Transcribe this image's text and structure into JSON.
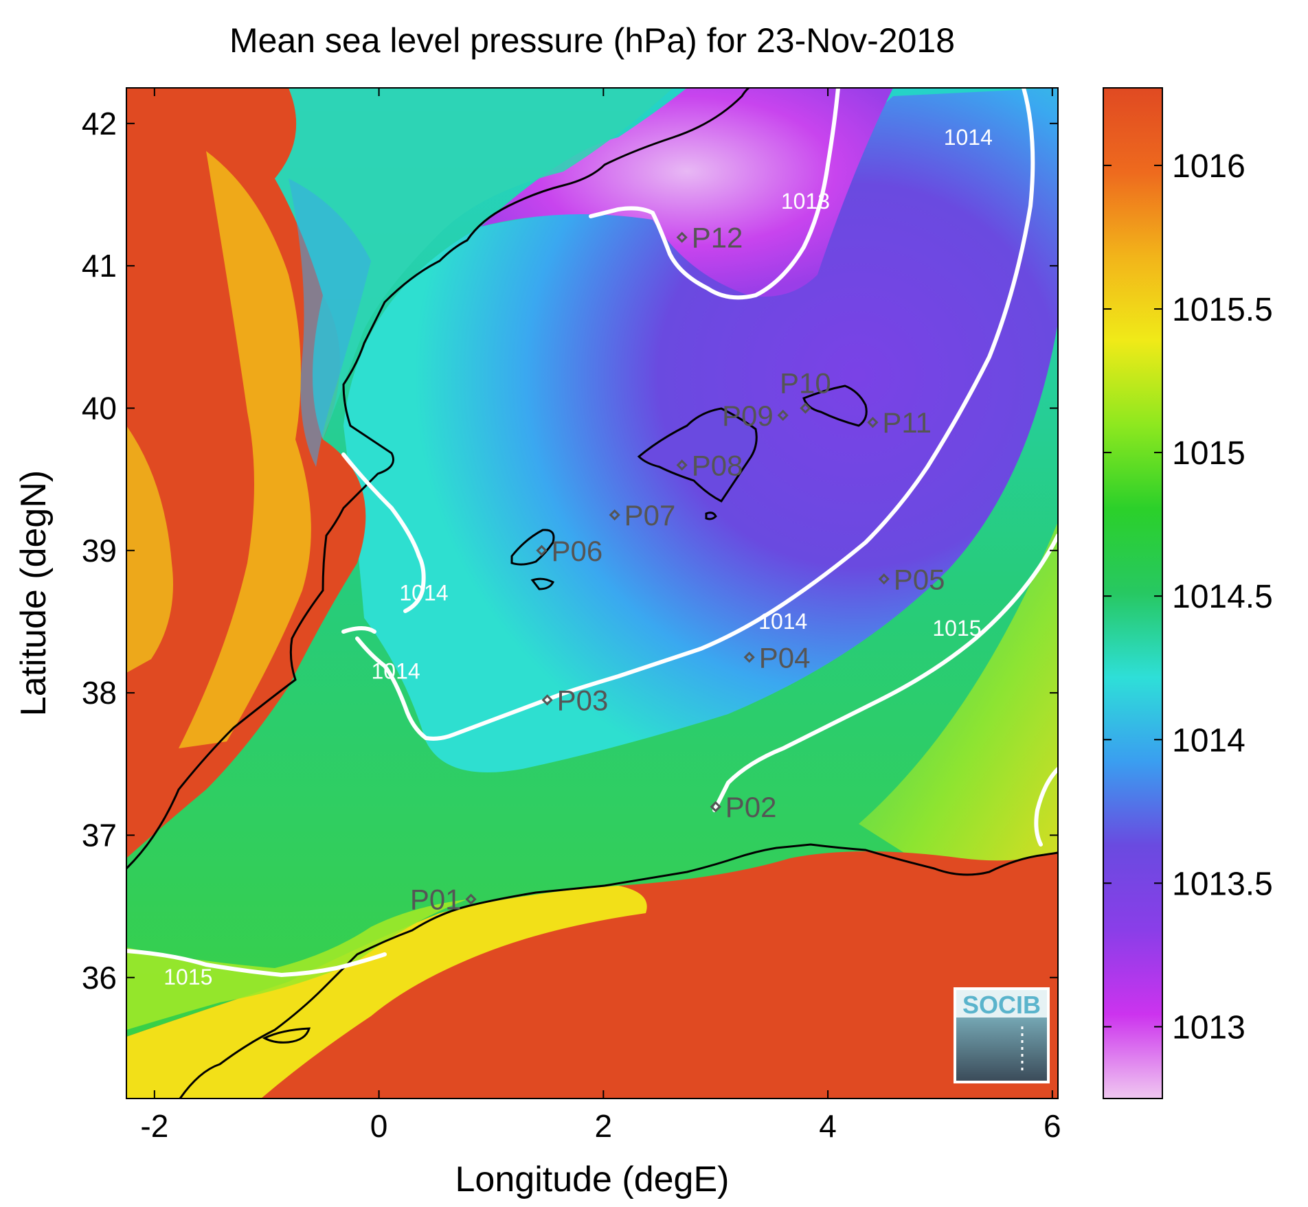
{
  "title": "Mean sea level pressure (hPa) for 23-Nov-2018",
  "xlabel": "Longitude (degE)",
  "ylabel": "Latitude (degN)",
  "x_ticks": [
    -2,
    0,
    2,
    4,
    6
  ],
  "y_ticks": [
    36,
    37,
    38,
    39,
    40,
    41,
    42
  ],
  "xlim": [
    -2.25,
    6.05
  ],
  "ylim": [
    35.15,
    42.25
  ],
  "colorbar": {
    "range": [
      1012.75,
      1016.27
    ],
    "ticks": [
      1013,
      1013.5,
      1014,
      1014.5,
      1015,
      1015.5,
      1016
    ],
    "stops": [
      "#f0c8f0",
      "#cc33ee",
      "#8a3ee8",
      "#6a4ae0",
      "#3a9ef0",
      "#2edfd8",
      "#27c862",
      "#2bd02a",
      "#8ee81f",
      "#f0ea18",
      "#f2b41a",
      "#ee6a1e",
      "#e04a22"
    ]
  },
  "colors": {
    "land": "#e04a22",
    "contour": "#ffffff",
    "coastline": "#000000",
    "station": "#555555"
  },
  "contour_labels": [
    {
      "text": "1013",
      "lon": 3.8,
      "lat": 41.4
    },
    {
      "text": "1014",
      "lon": 5.25,
      "lat": 41.85
    },
    {
      "text": "1014",
      "lon": 0.4,
      "lat": 38.65
    },
    {
      "text": "1014",
      "lon": 0.15,
      "lat": 38.1
    },
    {
      "text": "1014",
      "lon": 3.6,
      "lat": 38.45
    },
    {
      "text": "1015",
      "lon": 5.15,
      "lat": 38.4
    },
    {
      "text": "1015",
      "lon": -1.7,
      "lat": 35.95
    }
  ],
  "stations": [
    {
      "id": "P01",
      "lon": 0.82,
      "lat": 36.55,
      "label_side": "left"
    },
    {
      "id": "P02",
      "lon": 3.0,
      "lat": 37.2,
      "label_side": "right"
    },
    {
      "id": "P03",
      "lon": 1.5,
      "lat": 37.95,
      "label_side": "right"
    },
    {
      "id": "P04",
      "lon": 3.3,
      "lat": 38.25,
      "label_side": "right"
    },
    {
      "id": "P05",
      "lon": 4.5,
      "lat": 38.8,
      "label_side": "right"
    },
    {
      "id": "P06",
      "lon": 1.45,
      "lat": 39.0,
      "label_side": "right"
    },
    {
      "id": "P07",
      "lon": 2.1,
      "lat": 39.25,
      "label_side": "right"
    },
    {
      "id": "P08",
      "lon": 2.7,
      "lat": 39.6,
      "label_side": "right"
    },
    {
      "id": "P09",
      "lon": 3.6,
      "lat": 39.95,
      "label_side": "left"
    },
    {
      "id": "P10",
      "lon": 3.8,
      "lat": 40.0,
      "label_side": "above"
    },
    {
      "id": "P11",
      "lon": 4.4,
      "lat": 39.9,
      "label_side": "right"
    },
    {
      "id": "P12",
      "lon": 2.7,
      "lat": 41.2,
      "label_side": "right"
    }
  ],
  "logo_text": "SOCIB"
}
